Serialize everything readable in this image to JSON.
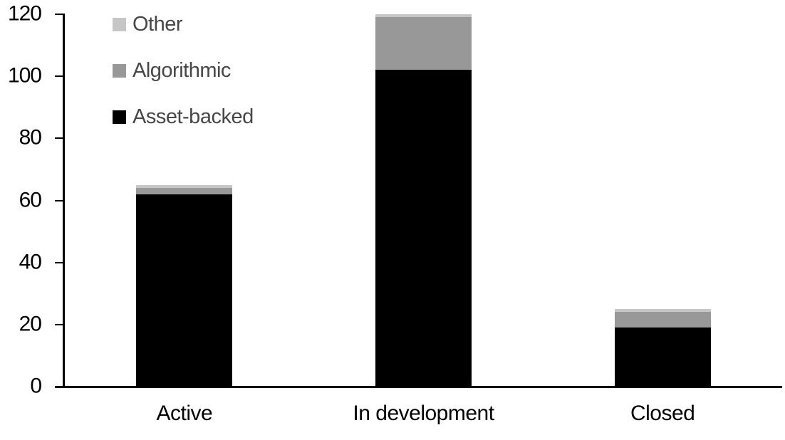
{
  "chart_data": {
    "type": "bar",
    "stacked": true,
    "title": "",
    "xlabel": "",
    "ylabel": "",
    "categories": [
      "Active",
      "In development",
      "Closed"
    ],
    "series": [
      {
        "name": "Asset-backed",
        "color": "#000000",
        "values": [
          62,
          102,
          19
        ]
      },
      {
        "name": "Algorithmic",
        "color": "#989898",
        "values": [
          2,
          17,
          5
        ]
      },
      {
        "name": "Other",
        "color": "#c6c6c6",
        "values": [
          1,
          1,
          1
        ]
      }
    ],
    "ylim": [
      0,
      120
    ],
    "yticks": [
      0,
      20,
      40,
      60,
      80,
      100,
      120
    ],
    "grid": false,
    "legend": {
      "position": "top-left",
      "order": [
        "Other",
        "Algorithmic",
        "Asset-backed"
      ],
      "text_color": "#474747"
    },
    "axis_color": "#000000",
    "tick_label_color": "#000000",
    "background": "#ffffff"
  }
}
